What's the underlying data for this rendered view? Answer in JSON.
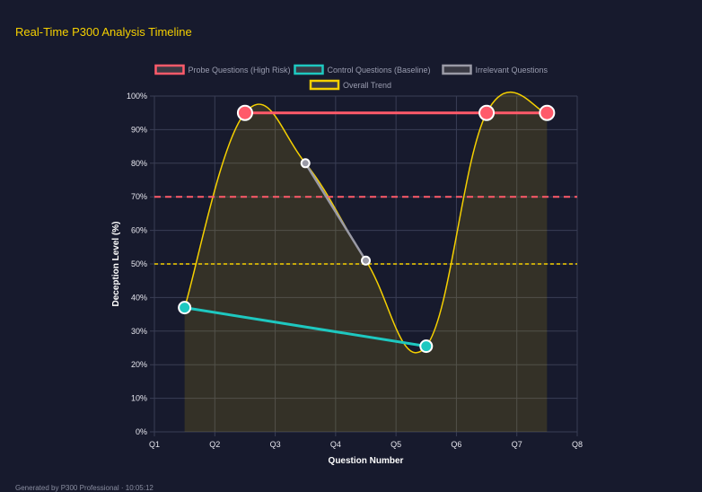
{
  "title": "Real-Time P300 Analysis Timeline",
  "footer": "Generated by P300 Professional · 10:05:12",
  "chart_data": {
    "type": "line",
    "xlabel": "Question Number",
    "ylabel": "Deception Level (%)",
    "x_ticks": [
      "Q1",
      "Q2",
      "Q3",
      "Q4",
      "Q5",
      "Q6",
      "Q7",
      "Q8"
    ],
    "xlim": [
      1,
      8
    ],
    "ylim": [
      0,
      100
    ],
    "y_ticks": [
      "0%",
      "10%",
      "20%",
      "30%",
      "40%",
      "50%",
      "60%",
      "70%",
      "80%",
      "90%",
      "100%"
    ],
    "grid": true,
    "legend_placement": "top",
    "series": [
      {
        "name": "Probe Questions (High Risk)",
        "color": "#ff5a6a",
        "points": [
          [
            2.5,
            95
          ],
          [
            6.5,
            95
          ],
          [
            7.5,
            95
          ]
        ]
      },
      {
        "name": "Control Questions (Baseline)",
        "color": "#1ec8c0",
        "points": [
          [
            1.5,
            37
          ],
          [
            5.5,
            25.5
          ]
        ]
      },
      {
        "name": "Irrelevant Questions",
        "color": "#9a9aa6",
        "points": [
          [
            3.5,
            80
          ],
          [
            4.5,
            51
          ]
        ]
      },
      {
        "name": "Overall Trend",
        "color": "#f5d000",
        "points": [
          [
            1.5,
            37
          ],
          [
            2.5,
            95
          ],
          [
            3.5,
            80
          ],
          [
            4.5,
            51
          ],
          [
            5.5,
            25.5
          ],
          [
            6.5,
            95
          ],
          [
            7.5,
            95
          ]
        ],
        "fill": true
      }
    ],
    "thresholds": [
      {
        "value": 70,
        "color": "#ff5a6a"
      },
      {
        "value": 50,
        "color": "#f5d000"
      }
    ]
  }
}
